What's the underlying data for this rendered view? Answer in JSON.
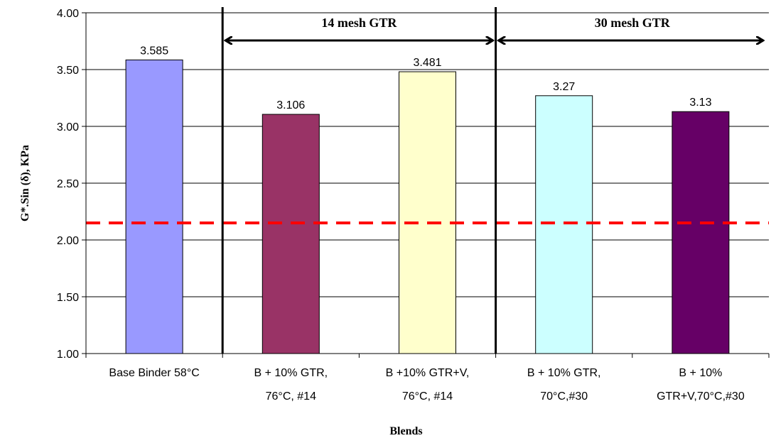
{
  "chart_data": {
    "type": "bar",
    "categories": [
      [
        "Base Binder 58°C"
      ],
      [
        "B + 10% GTR,",
        "76°C, #14"
      ],
      [
        "B +10% GTR+V,",
        "76°C, #14"
      ],
      [
        "B + 10% GTR,",
        "70°C,#30"
      ],
      [
        "B + 10%",
        "GTR+V,70°C,#30"
      ]
    ],
    "values": [
      3.585,
      3.106,
      3.481,
      3.27,
      3.13
    ],
    "value_labels": [
      "3.585",
      "3.106",
      "3.481",
      "3.27",
      "3.13"
    ],
    "bar_colors": [
      "#9999ff",
      "#993366",
      "#ffffcc",
      "#ccffff",
      "#660066"
    ],
    "xlabel": "Blends",
    "ylabel": "G*.Sin (δ), KPa",
    "ylim": [
      1.0,
      4.0
    ],
    "yticks": [
      "1.00",
      "1.50",
      "2.00",
      "2.50",
      "3.00",
      "3.50",
      "4.00"
    ],
    "grid": true,
    "reference_line": {
      "value": 2.15,
      "color": "#ff0000",
      "style": "dashed"
    },
    "groups": [
      {
        "label": "14 mesh GTR",
        "from_category": 1,
        "to_category": 2
      },
      {
        "label": "30 mesh GTR",
        "from_category": 3,
        "to_category": 4
      }
    ]
  }
}
